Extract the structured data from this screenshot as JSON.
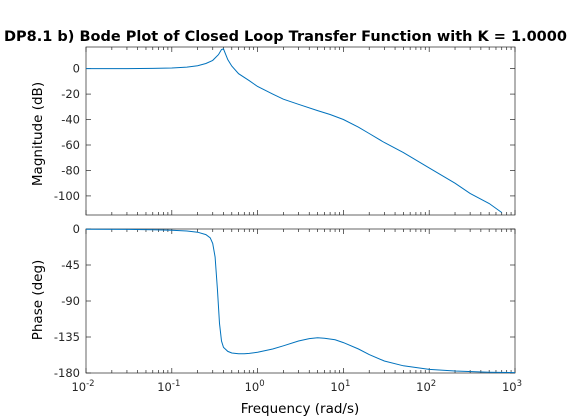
{
  "chart_data": [
    {
      "type": "line",
      "title": "DP8.1 b) Bode Plot of Closed Loop Transfer Function with K = 1.0000",
      "xlabel": "",
      "ylabel": "Magnitude (dB)",
      "xscale": "log",
      "xlim": [
        0.01,
        1000
      ],
      "ylim": [
        -115,
        17
      ],
      "yticks": [
        0,
        -20,
        -40,
        -60,
        -80,
        -100
      ],
      "ytick_labels": [
        "0",
        "-20",
        "-40",
        "-60",
        "-80",
        "-100"
      ],
      "grid": false,
      "series": [
        {
          "color": "#0072bd",
          "x": [
            0.01,
            0.03,
            0.06,
            0.1,
            0.15,
            0.2,
            0.25,
            0.3,
            0.35,
            0.38,
            0.4,
            0.42,
            0.45,
            0.5,
            0.6,
            0.8,
            1,
            1.5,
            2,
            3,
            5,
            7,
            10,
            15,
            20,
            30,
            50,
            100,
            200,
            300,
            500,
            700
          ],
          "y": [
            0,
            0.05,
            0.2,
            0.5,
            1.2,
            2.3,
            4,
            6.5,
            11,
            15,
            15.5,
            12,
            7,
            2,
            -4,
            -9.5,
            -14,
            -20,
            -24,
            -28,
            -33,
            -36,
            -40,
            -46,
            -51,
            -58,
            -66,
            -78,
            -90,
            -98,
            -106,
            -113
          ]
        }
      ]
    },
    {
      "type": "line",
      "title": "",
      "xlabel": "Frequency  (rad/s)",
      "ylabel": "Phase (deg)",
      "xscale": "log",
      "xlim": [
        0.01,
        1000
      ],
      "ylim": [
        -180,
        0
      ],
      "yticks": [
        0,
        -45,
        -90,
        -135,
        -180
      ],
      "ytick_labels": [
        "0",
        "-45",
        "-90",
        "-135",
        "-180"
      ],
      "xtick_labels": [
        "10^-2",
        "10^-1",
        "10^0",
        "10^1",
        "10^2",
        "10^3"
      ],
      "grid": false,
      "series": [
        {
          "color": "#0072bd",
          "x": [
            0.01,
            0.03,
            0.06,
            0.1,
            0.15,
            0.2,
            0.25,
            0.28,
            0.3,
            0.32,
            0.34,
            0.36,
            0.38,
            0.4,
            0.45,
            0.5,
            0.6,
            0.7,
            0.8,
            1,
            1.5,
            2,
            3,
            4,
            5,
            6,
            8,
            10,
            15,
            20,
            30,
            50,
            100,
            200,
            500,
            1000
          ],
          "y": [
            -0.2,
            -0.5,
            -1,
            -1.5,
            -2.5,
            -4,
            -7,
            -11,
            -18,
            -35,
            -75,
            -118,
            -140,
            -148,
            -153,
            -155,
            -156,
            -156,
            -155.5,
            -154,
            -150,
            -146,
            -140,
            -137,
            -136,
            -136.5,
            -138.5,
            -142,
            -150,
            -157,
            -165,
            -171,
            -175.5,
            -177.5,
            -179,
            -179.5
          ]
        }
      ]
    }
  ]
}
